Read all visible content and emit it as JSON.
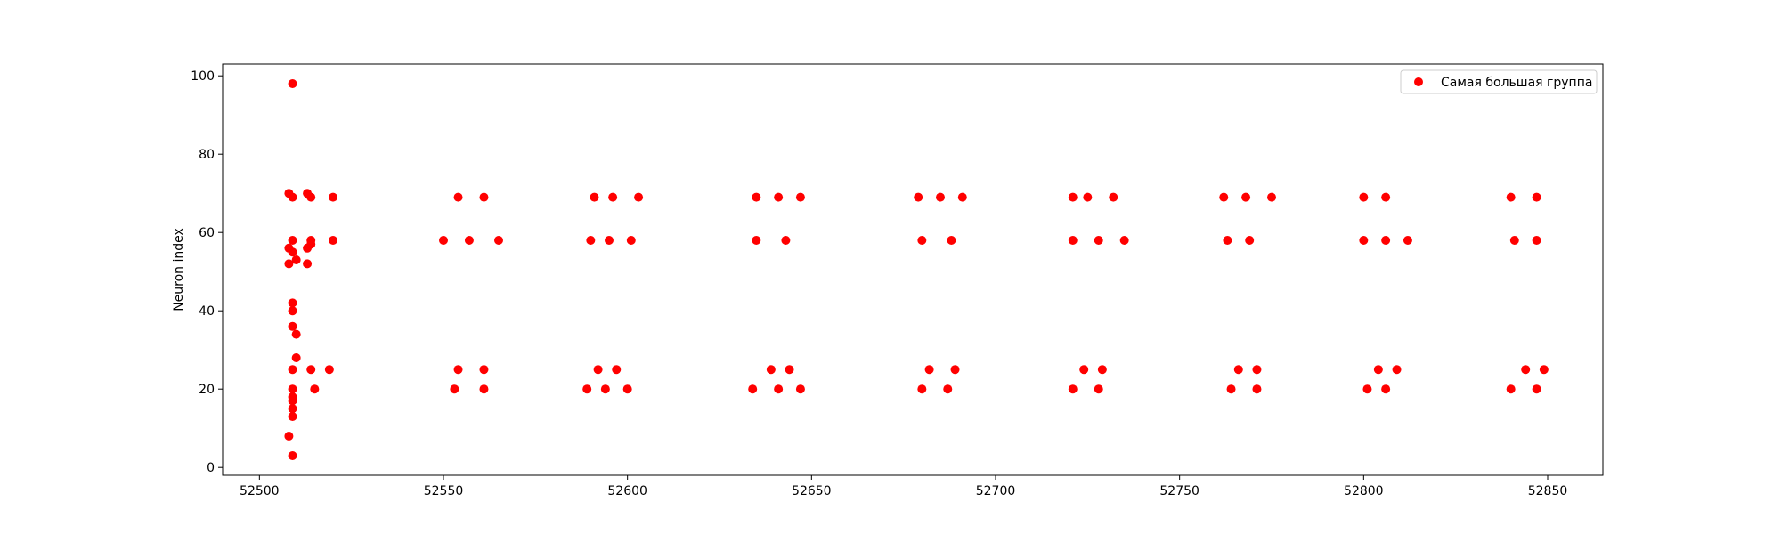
{
  "chart_data": {
    "type": "scatter",
    "title": "",
    "xlabel": "",
    "ylabel": "Neuron index",
    "xlim": [
      52490,
      52865
    ],
    "ylim": [
      -2,
      103
    ],
    "xticks": [
      52500,
      52550,
      52600,
      52650,
      52700,
      52750,
      52800,
      52850
    ],
    "yticks": [
      0,
      20,
      40,
      60,
      80,
      100
    ],
    "grid": false,
    "legend_position": "top-right",
    "series": [
      {
        "name": "Самая большая группа",
        "color": "#ff0000",
        "marker": "circle",
        "points": [
          [
            52509,
            98
          ],
          [
            52508,
            70
          ],
          [
            52509,
            69
          ],
          [
            52513,
            70
          ],
          [
            52514,
            69
          ],
          [
            52520,
            69
          ],
          [
            52509,
            58
          ],
          [
            52508,
            56
          ],
          [
            52509,
            55
          ],
          [
            52510,
            53
          ],
          [
            52508,
            52
          ],
          [
            52513,
            52
          ],
          [
            52513,
            56
          ],
          [
            52514,
            57
          ],
          [
            52514,
            58
          ],
          [
            52520,
            58
          ],
          [
            52509,
            42
          ],
          [
            52509,
            40
          ],
          [
            52509,
            36
          ],
          [
            52510,
            34
          ],
          [
            52510,
            28
          ],
          [
            52509,
            25
          ],
          [
            52514,
            25
          ],
          [
            52519,
            25
          ],
          [
            52509,
            20
          ],
          [
            52515,
            20
          ],
          [
            52509,
            18
          ],
          [
            52509,
            17
          ],
          [
            52509,
            15
          ],
          [
            52509,
            13
          ],
          [
            52508,
            8
          ],
          [
            52509,
            3
          ],
          [
            52554,
            69
          ],
          [
            52561,
            69
          ],
          [
            52550,
            58
          ],
          [
            52557,
            58
          ],
          [
            52565,
            58
          ],
          [
            52554,
            25
          ],
          [
            52561,
            25
          ],
          [
            52553,
            20
          ],
          [
            52561,
            20
          ],
          [
            52591,
            69
          ],
          [
            52596,
            69
          ],
          [
            52603,
            69
          ],
          [
            52590,
            58
          ],
          [
            52595,
            58
          ],
          [
            52601,
            58
          ],
          [
            52592,
            25
          ],
          [
            52597,
            25
          ],
          [
            52589,
            20
          ],
          [
            52594,
            20
          ],
          [
            52600,
            20
          ],
          [
            52635,
            69
          ],
          [
            52641,
            69
          ],
          [
            52647,
            69
          ],
          [
            52635,
            58
          ],
          [
            52643,
            58
          ],
          [
            52639,
            25
          ],
          [
            52644,
            25
          ],
          [
            52634,
            20
          ],
          [
            52641,
            20
          ],
          [
            52647,
            20
          ],
          [
            52679,
            69
          ],
          [
            52685,
            69
          ],
          [
            52691,
            69
          ],
          [
            52680,
            58
          ],
          [
            52688,
            58
          ],
          [
            52682,
            25
          ],
          [
            52689,
            25
          ],
          [
            52680,
            20
          ],
          [
            52687,
            20
          ],
          [
            52721,
            69
          ],
          [
            52725,
            69
          ],
          [
            52732,
            69
          ],
          [
            52721,
            58
          ],
          [
            52728,
            58
          ],
          [
            52735,
            58
          ],
          [
            52724,
            25
          ],
          [
            52729,
            25
          ],
          [
            52721,
            20
          ],
          [
            52728,
            20
          ],
          [
            52762,
            69
          ],
          [
            52768,
            69
          ],
          [
            52775,
            69
          ],
          [
            52763,
            58
          ],
          [
            52769,
            58
          ],
          [
            52766,
            25
          ],
          [
            52771,
            25
          ],
          [
            52764,
            20
          ],
          [
            52771,
            20
          ],
          [
            52800,
            69
          ],
          [
            52806,
            69
          ],
          [
            52800,
            58
          ],
          [
            52806,
            58
          ],
          [
            52812,
            58
          ],
          [
            52804,
            25
          ],
          [
            52809,
            25
          ],
          [
            52801,
            20
          ],
          [
            52806,
            20
          ],
          [
            52840,
            69
          ],
          [
            52847,
            69
          ],
          [
            52841,
            58
          ],
          [
            52847,
            58
          ],
          [
            52844,
            25
          ],
          [
            52849,
            25
          ],
          [
            52840,
            20
          ],
          [
            52847,
            20
          ]
        ]
      }
    ]
  }
}
